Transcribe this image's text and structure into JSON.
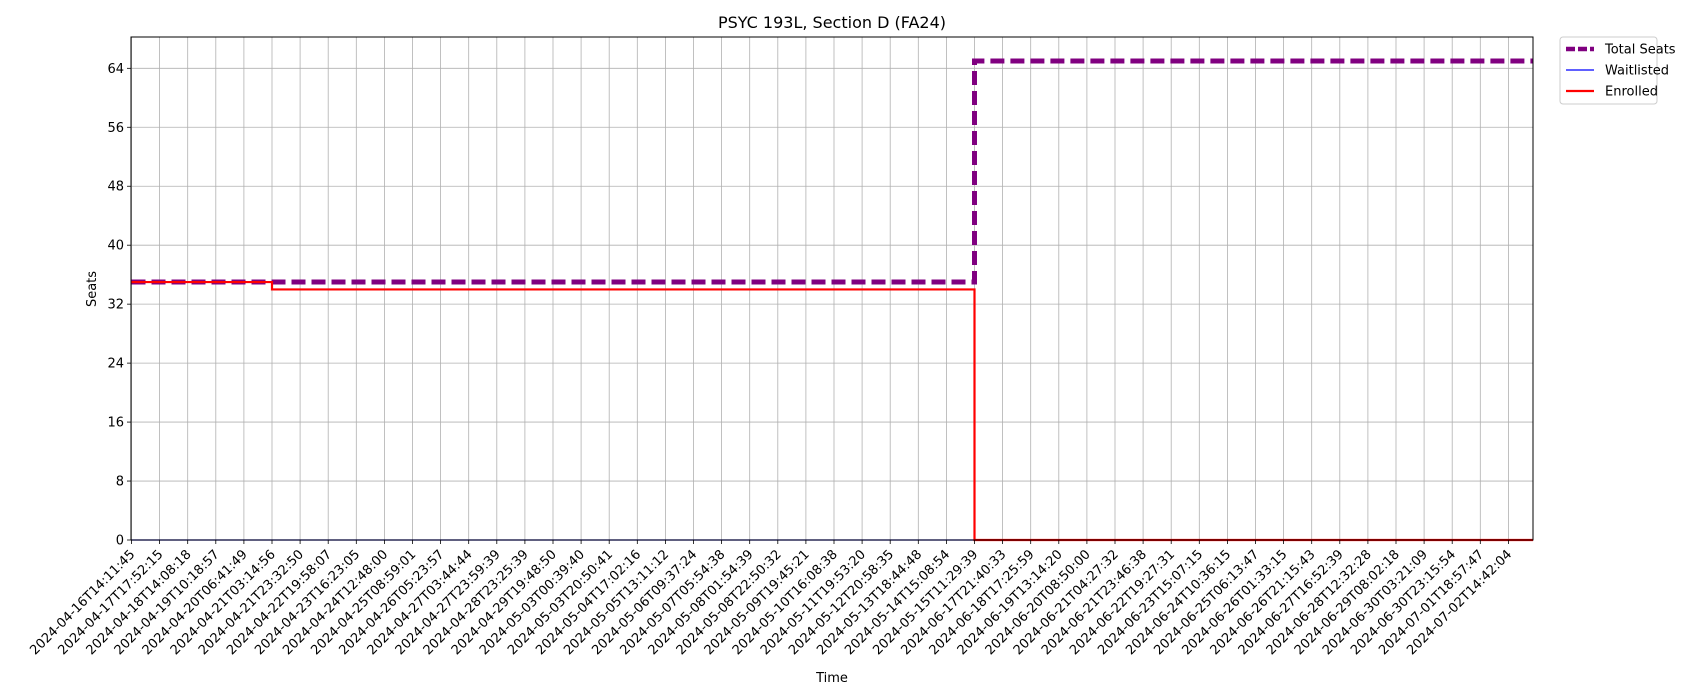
{
  "chart_data": {
    "type": "line",
    "title": "PSYC 193L, Section D (FA24)",
    "xlabel": "Time",
    "ylabel": "Seats",
    "ylim": [
      0,
      68.25
    ],
    "yticks": [
      0,
      8,
      16,
      24,
      32,
      40,
      48,
      56,
      64
    ],
    "grid": true,
    "legend_position": "outside top-right",
    "categories": [
      "2024-04-16T14:11:45",
      "2024-04-17T17:52:15",
      "2024-04-18T14:08:18",
      "2024-04-19T10:18:57",
      "2024-04-20T06:41:49",
      "2024-04-21T03:14:56",
      "2024-04-21T23:32:50",
      "2024-04-22T19:58:07",
      "2024-04-23T16:23:05",
      "2024-04-24T12:48:00",
      "2024-04-25T08:59:01",
      "2024-04-26T05:23:57",
      "2024-04-27T03:44:44",
      "2024-04-27T23:59:39",
      "2024-04-28T23:25:39",
      "2024-04-29T19:48:50",
      "2024-05-03T00:39:40",
      "2024-05-03T20:50:41",
      "2024-05-04T17:02:16",
      "2024-05-05T13:11:12",
      "2024-05-06T09:37:24",
      "2024-05-07T05:54:38",
      "2024-05-08T01:54:39",
      "2024-05-08T22:50:32",
      "2024-05-09T19:45:21",
      "2024-05-10T16:08:38",
      "2024-05-11T19:53:20",
      "2024-05-12T20:58:35",
      "2024-05-13T18:44:48",
      "2024-05-14T15:08:54",
      "2024-05-15T11:29:39",
      "2024-06-17T21:40:33",
      "2024-06-18T17:25:59",
      "2024-06-19T13:14:20",
      "2024-06-20T08:50:00",
      "2024-06-21T04:27:32",
      "2024-06-21T23:46:38",
      "2024-06-22T19:27:31",
      "2024-06-23T15:07:15",
      "2024-06-24T10:36:15",
      "2024-06-25T06:13:47",
      "2024-06-26T01:33:15",
      "2024-06-26T21:15:43",
      "2024-06-27T16:52:39",
      "2024-06-28T12:32:28",
      "2024-06-29T08:02:18",
      "2024-06-30T03:21:09",
      "2024-06-30T23:15:54",
      "2024-07-01T18:57:47",
      "2024-07-02T14:42:04"
    ],
    "series": [
      {
        "name": "Total Seats",
        "color": "#800080",
        "style": "dashed",
        "step": "post",
        "segments": [
          {
            "from": "2024-04-16T14:11:45",
            "value": 35
          },
          {
            "from": "2024-05-15T11:29:39",
            "value": 65
          }
        ]
      },
      {
        "name": "Waitlisted",
        "color": "#0000ff",
        "style": "solid",
        "step": "post",
        "segments": [
          {
            "from": "2024-04-16T14:11:45",
            "value": 0
          }
        ]
      },
      {
        "name": "Enrolled",
        "color": "#ff0000",
        "style": "solid",
        "step": "post",
        "segments": [
          {
            "from": "2024-04-16T14:11:45",
            "value": 35
          },
          {
            "from": "2024-04-21T03:14:56",
            "value": 34
          },
          {
            "from": "2024-05-15T11:29:39",
            "value": 0
          }
        ]
      }
    ]
  }
}
